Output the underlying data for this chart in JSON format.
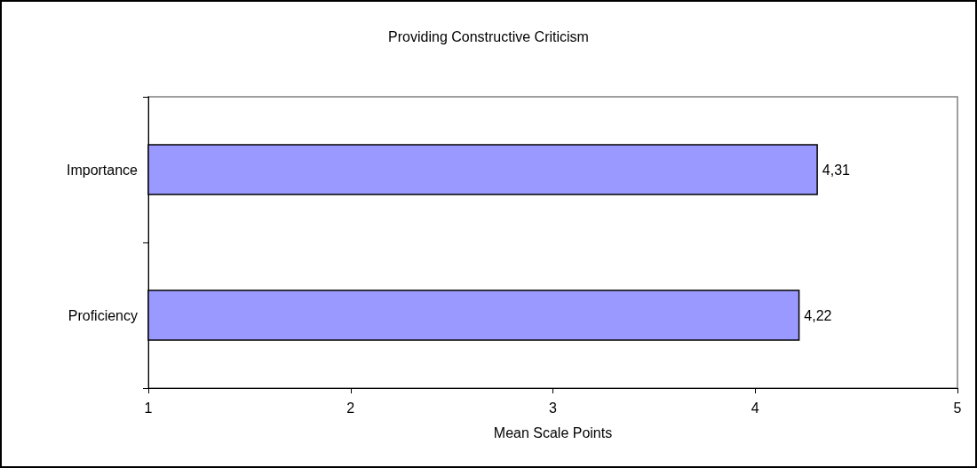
{
  "chart_data": {
    "type": "bar",
    "orientation": "horizontal",
    "title": "Providing Constructive Criticism",
    "xlabel": "Mean Scale Points",
    "categories": [
      "Importance",
      "Proficiency"
    ],
    "values": [
      4.31,
      4.22
    ],
    "color": "#9999ff",
    "value_labels": [
      "4,31",
      "4,22"
    ],
    "xlim": [
      1,
      5
    ],
    "xticks": [
      1,
      2,
      3,
      4,
      5
    ],
    "grid": false
  }
}
